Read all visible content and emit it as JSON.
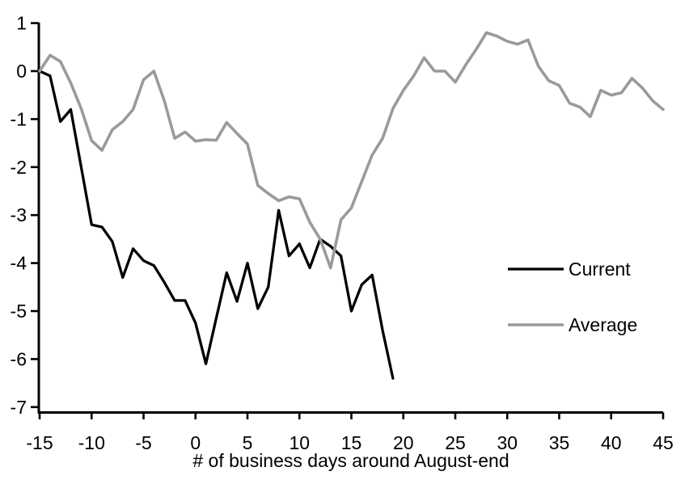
{
  "chart_data": {
    "type": "line",
    "title": "",
    "xlabel": "# of business days around August-end",
    "ylabel": "",
    "grid": false,
    "legend_position": "middle-right",
    "x_axis": {
      "min": -15,
      "max": 45,
      "ticks": [
        -15,
        -10,
        -5,
        0,
        5,
        10,
        15,
        20,
        25,
        30,
        35,
        40,
        45
      ]
    },
    "y_axis": {
      "min": -7,
      "max": 1,
      "ticks": [
        1,
        0,
        -1,
        -2,
        -3,
        -4,
        -5,
        -6,
        -7
      ]
    },
    "series": [
      {
        "name": "Current",
        "color": "#000000",
        "stroke_width": 3.3,
        "x_start": -15,
        "values": [
          0,
          -0.1,
          -1.05,
          -0.8,
          -2.0,
          -3.2,
          -3.25,
          -3.55,
          -4.3,
          -3.7,
          -3.95,
          -4.05,
          -4.4,
          -4.78,
          -4.78,
          -5.25,
          -6.1,
          -5.15,
          -4.2,
          -4.8,
          -4.0,
          -4.95,
          -4.5,
          -2.9,
          -3.85,
          -3.6,
          -4.1,
          -3.5,
          -3.65,
          -3.85,
          -5.0,
          -4.45,
          -4.25,
          -5.4,
          -6.4
        ]
      },
      {
        "name": "Average",
        "color": "#9a9a9a",
        "stroke_width": 3.6,
        "x_start": -15,
        "values": [
          0,
          0.33,
          0.2,
          -0.25,
          -0.78,
          -1.45,
          -1.65,
          -1.22,
          -1.05,
          -0.8,
          -0.18,
          0.0,
          -0.62,
          -1.4,
          -1.27,
          -1.46,
          -1.43,
          -1.44,
          -1.07,
          -1.3,
          -1.52,
          -2.38,
          -2.55,
          -2.7,
          -2.62,
          -2.66,
          -3.15,
          -3.5,
          -4.1,
          -3.1,
          -2.85,
          -2.3,
          -1.75,
          -1.4,
          -0.78,
          -0.4,
          -0.1,
          0.28,
          0.0,
          0.0,
          -0.23,
          0.13,
          0.45,
          0.8,
          0.73,
          0.62,
          0.56,
          0.65,
          0.1,
          -0.2,
          -0.3,
          -0.67,
          -0.75,
          -0.95,
          -0.4,
          -0.5,
          -0.45,
          -0.15,
          -0.35,
          -0.62,
          -0.8
        ]
      }
    ]
  }
}
